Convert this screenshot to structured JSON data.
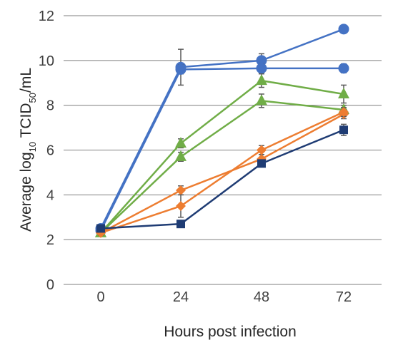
{
  "chart_data": {
    "type": "line",
    "xlabel": "Hours post infection",
    "ylabel": {
      "prefix": "Average log",
      "sub1": "10",
      "mid": " TCID",
      "sub2": "50",
      "suffix": "/mL"
    },
    "x": [
      0,
      24,
      48,
      72
    ],
    "x_tick_labels": [
      "0",
      "24",
      "48",
      "72"
    ],
    "ylim": [
      0,
      12
    ],
    "y_ticks": [
      0,
      2,
      4,
      6,
      8,
      10,
      12
    ],
    "grid": "horizontal",
    "series": [
      {
        "color": "#4472c4",
        "marker": "circle",
        "values": [
          2.5,
          9.7,
          10.0,
          11.4
        ],
        "errors": [
          0.1,
          0.8,
          0.3,
          0.1
        ]
      },
      {
        "color": "#4472c4",
        "marker": "circle",
        "values": [
          2.4,
          9.6,
          9.65,
          9.65
        ],
        "errors": [
          0.1,
          0.2,
          0.2,
          0.2
        ]
      },
      {
        "color": "#70ad47",
        "marker": "triangle",
        "values": [
          2.3,
          6.3,
          9.1,
          8.5
        ],
        "errors": [
          0.1,
          0.2,
          0.3,
          0.4
        ]
      },
      {
        "color": "#70ad47",
        "marker": "triangle",
        "values": [
          2.3,
          5.7,
          8.2,
          7.8
        ],
        "errors": [
          0.1,
          0.2,
          0.3,
          0.2
        ]
      },
      {
        "color": "#ed7d31",
        "marker": "diamond",
        "values": [
          2.3,
          4.2,
          5.6,
          7.6
        ],
        "errors": [
          0.1,
          0.2,
          0.2,
          0.2
        ]
      },
      {
        "color": "#ed7d31",
        "marker": "diamond",
        "values": [
          2.3,
          3.5,
          6.0,
          7.7
        ],
        "errors": [
          0.1,
          0.5,
          0.2,
          0.2
        ]
      },
      {
        "color": "#1f3c74",
        "marker": "square",
        "values": [
          2.5,
          2.7,
          5.4,
          6.9
        ],
        "errors": [
          0.1,
          0.1,
          0.1,
          0.25
        ]
      }
    ]
  }
}
